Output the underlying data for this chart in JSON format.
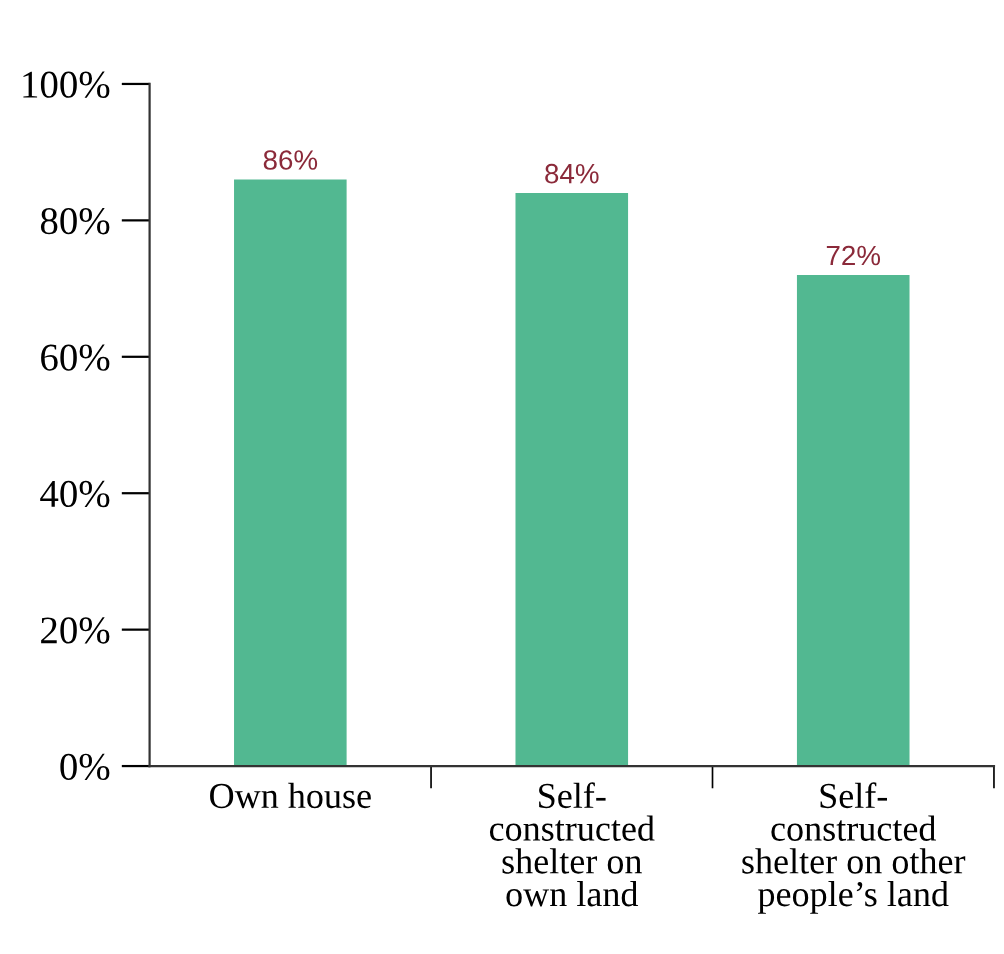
{
  "chart_data": {
    "type": "bar",
    "categories": [
      "Own house",
      "Self-\nconstructed\nshelter on\nown land",
      "Self-\nconstructed\nshelter on other\npeople’s land"
    ],
    "values": [
      86,
      84,
      72
    ],
    "value_labels": [
      "86%",
      "84%",
      "72%"
    ],
    "color": "#52b891",
    "ylim": [
      0,
      100
    ],
    "yticks": [
      {
        "value": 0,
        "label": "0%"
      },
      {
        "value": 20,
        "label": "20%"
      },
      {
        "value": 40,
        "label": "40%"
      },
      {
        "value": 60,
        "label": "60%"
      },
      {
        "value": 80,
        "label": "80%"
      },
      {
        "value": 100,
        "label": "100%"
      }
    ],
    "grid": false,
    "legend": false
  }
}
